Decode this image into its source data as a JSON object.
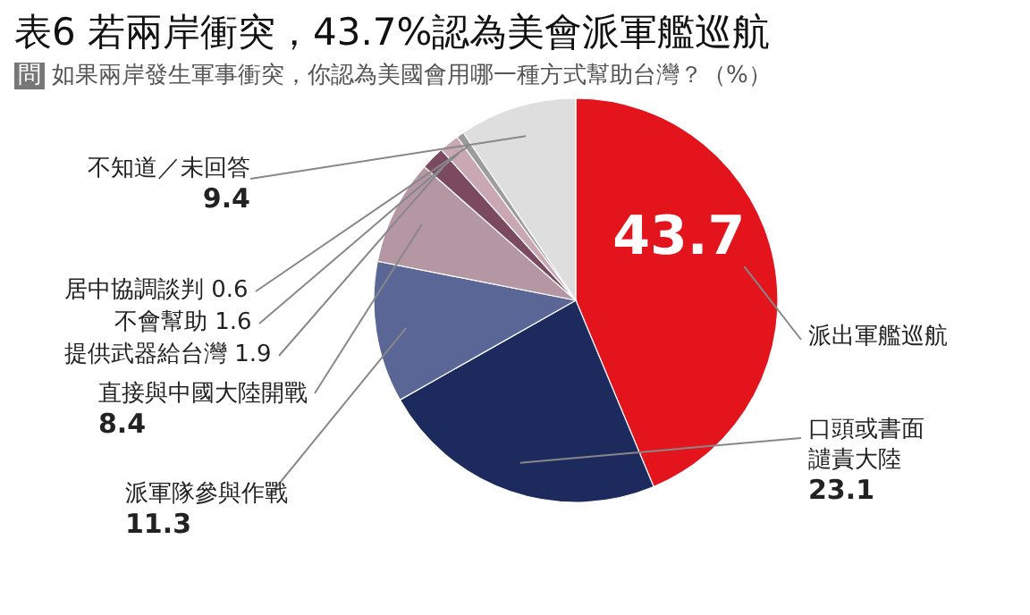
{
  "chart_data": {
    "type": "pie",
    "title": "表6 若兩岸衝突，43.7%認為美會派軍艦巡航",
    "subtitle": "問 如果兩岸發生軍事衝突，你認為美國會用哪一種方式幫助台灣？（%）",
    "categories": [
      "派出軍艦巡航",
      "口頭或書面譴責大陸",
      "派軍隊參與作戰",
      "直接與中國大陸開戰",
      "提供武器給台灣",
      "不會幫助",
      "居中協調談判",
      "不知道／未回答"
    ],
    "values": [
      43.7,
      23.1,
      11.3,
      8.4,
      1.9,
      1.6,
      0.6,
      9.4
    ],
    "colors": [
      "#e3141b",
      "#1d2a5e",
      "#5a6696",
      "#b596a3",
      "#7b4a60",
      "#c9a7b3",
      "#9c9c9c",
      "#dedede"
    ],
    "data_labels": true
  }
}
